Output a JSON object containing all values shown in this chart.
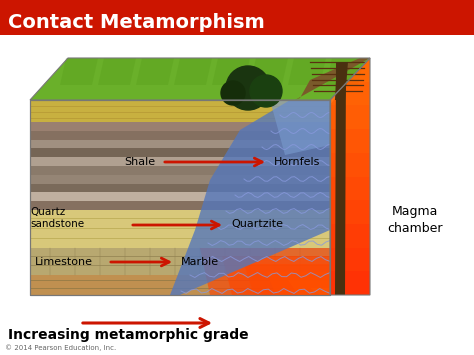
{
  "title": "Contact Metamorphism",
  "title_color": "#FFFFFF",
  "title_bg_color": "#CC1500",
  "bg_color": "#FFFFFF",
  "subtitle": "Increasing metamorphic grade",
  "copyright": "© 2014 Pearson Education, Inc.",
  "arrow_color": "#CC1500",
  "label_fontsize": 8,
  "title_fontsize": 14,
  "subtitle_fontsize": 10,
  "magma_label": "Magma\nchamber",
  "grass_color": "#6ab02a",
  "grass_dark": "#4a9010",
  "sand_color": "#d4b84a",
  "shale_colors": [
    "#9a8070",
    "#857060",
    "#a09080",
    "#756555",
    "#b0a090",
    "#8a7a6a",
    "#958575",
    "#7a6a5a",
    "#c0b0a0",
    "#857060"
  ],
  "qs_color": "#d8c87a",
  "limestone_color": "#b8a870",
  "bottom_color": "#a09060",
  "blue_zone_color": "#5577bb",
  "blue_zone_light": "#7799cc",
  "magma_colors": [
    "#ff2200",
    "#ff5500",
    "#ff8800",
    "#ffaa00"
  ],
  "dike_color": "#4a3010",
  "mountain_color": "#7a5a2a",
  "tree_color": "#1a3010"
}
